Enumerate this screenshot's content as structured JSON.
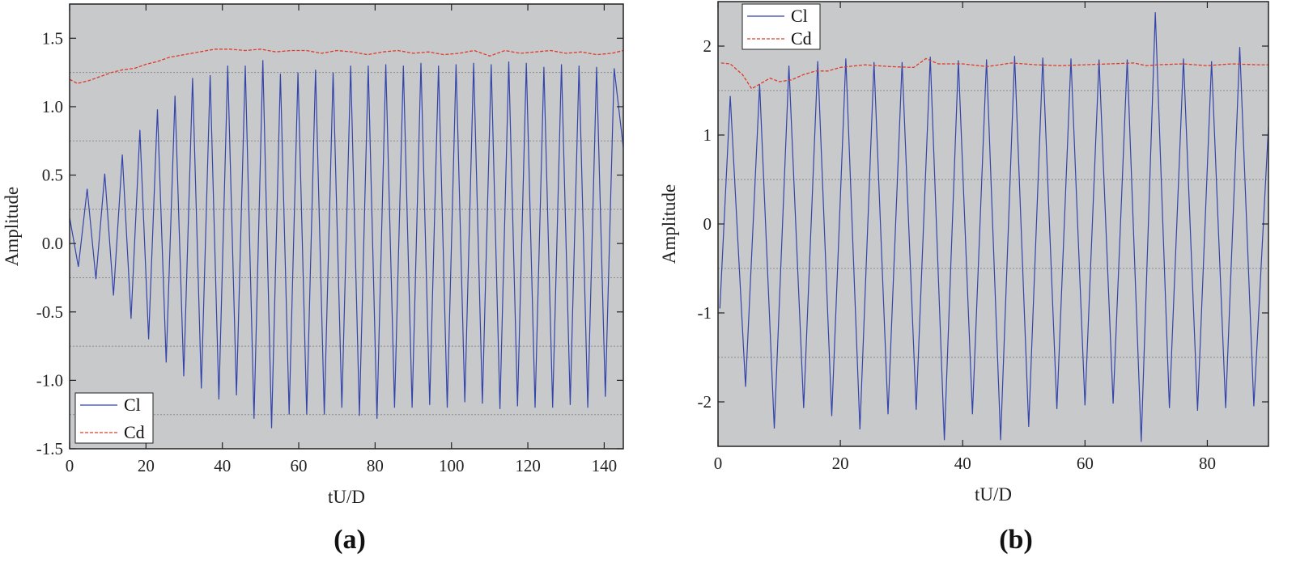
{
  "chart_data": [
    {
      "type": "line",
      "panel_label": "(a)",
      "xlabel": "tU/D",
      "ylabel": "Amplitude",
      "xlim": [
        0,
        145
      ],
      "ylim": [
        -1.5,
        1.75
      ],
      "xticks": [
        0,
        20,
        40,
        60,
        80,
        100,
        120,
        140
      ],
      "xtick_labels": [
        "0",
        "20",
        "40",
        "60",
        "80",
        "100",
        "120",
        "140"
      ],
      "yticks": [
        -1.5,
        -1.0,
        -0.5,
        0.0,
        0.5,
        1.0,
        1.5
      ],
      "ytick_labels": [
        "-1.5",
        "-1.0",
        "-0.5",
        "0.0",
        "0.5",
        "1.0",
        "1.5"
      ],
      "grid_y": [
        -1.25,
        -0.75,
        -0.25,
        0.25,
        0.75,
        1.25
      ],
      "plot_bg": "#c8c9cb",
      "legend": {
        "placement": "bottom-left",
        "entries": [
          "Cl",
          "Cd"
        ]
      },
      "series": [
        {
          "name": "Cl",
          "color": "#3344aa",
          "style": "solid",
          "x": [
            0,
            2.3,
            4.6,
            6.9,
            9.2,
            11.5,
            13.8,
            16.1,
            18.4,
            20.7,
            23.0,
            25.3,
            27.6,
            29.9,
            32.2,
            34.5,
            36.8,
            39.1,
            41.4,
            43.7,
            46.0,
            48.3,
            50.6,
            52.9,
            55.2,
            57.5,
            59.8,
            62.1,
            64.4,
            66.7,
            69.0,
            71.3,
            73.6,
            75.9,
            78.2,
            80.5,
            82.8,
            85.1,
            87.4,
            89.7,
            92.0,
            94.3,
            96.6,
            98.9,
            101.2,
            103.5,
            105.8,
            108.1,
            110.4,
            112.7,
            115.0,
            117.3,
            119.6,
            121.9,
            124.2,
            126.5,
            128.8,
            131.1,
            133.4,
            135.7,
            138.0,
            140.3,
            142.6,
            145.0
          ],
          "values": [
            0.19,
            -0.17,
            0.4,
            -0.26,
            0.51,
            -0.38,
            0.65,
            -0.55,
            0.83,
            -0.7,
            0.98,
            -0.87,
            1.08,
            -0.97,
            1.21,
            -1.06,
            1.23,
            -1.14,
            1.3,
            -1.11,
            1.3,
            -1.28,
            1.34,
            -1.35,
            1.24,
            -1.25,
            1.25,
            -1.25,
            1.27,
            -1.25,
            1.25,
            -1.2,
            1.3,
            -1.26,
            1.3,
            -1.28,
            1.31,
            -1.2,
            1.3,
            -1.2,
            1.32,
            -1.18,
            1.3,
            -1.2,
            1.31,
            -1.16,
            1.32,
            -1.17,
            1.31,
            -1.21,
            1.33,
            -1.19,
            1.32,
            -1.2,
            1.29,
            -1.2,
            1.31,
            -1.18,
            1.3,
            -1.2,
            1.29,
            -1.12,
            1.28,
            0.7
          ]
        },
        {
          "name": "Cd",
          "color": "#e03a2a",
          "style": "dashed",
          "x": [
            0,
            2,
            5,
            8,
            11,
            14,
            17,
            20,
            23,
            26,
            30,
            34,
            38,
            42,
            46,
            50,
            54,
            58,
            62,
            66,
            70,
            74,
            78,
            82,
            86,
            90,
            94,
            98,
            102,
            106,
            110,
            114,
            118,
            122,
            126,
            130,
            134,
            138,
            142,
            145
          ],
          "values": [
            1.2,
            1.17,
            1.19,
            1.22,
            1.25,
            1.27,
            1.28,
            1.31,
            1.33,
            1.36,
            1.38,
            1.4,
            1.42,
            1.42,
            1.41,
            1.42,
            1.4,
            1.41,
            1.41,
            1.39,
            1.41,
            1.4,
            1.38,
            1.4,
            1.41,
            1.39,
            1.4,
            1.38,
            1.39,
            1.41,
            1.37,
            1.41,
            1.39,
            1.4,
            1.41,
            1.39,
            1.4,
            1.38,
            1.39,
            1.41
          ]
        }
      ]
    },
    {
      "type": "line",
      "panel_label": "(b)",
      "xlabel": "tU/D",
      "ylabel": "Amplitude",
      "xlim": [
        0,
        90
      ],
      "ylim": [
        -2.5,
        2.5
      ],
      "xticks": [
        0,
        20,
        40,
        60,
        80
      ],
      "xtick_labels": [
        "0",
        "20",
        "40",
        "60",
        "80"
      ],
      "yticks": [
        -2,
        -1,
        0,
        1,
        2
      ],
      "ytick_labels": [
        "-2",
        "-1",
        "0",
        "1",
        "2"
      ],
      "grid_y": [
        -1.5,
        -0.5,
        0.5,
        1.5
      ],
      "plot_bg": "#c8c9cb",
      "legend": {
        "placement": "top-left",
        "entries": [
          "Cl",
          "Cd"
        ]
      },
      "series": [
        {
          "name": "Cl",
          "color": "#3344aa",
          "style": "solid",
          "x": [
            0.3,
            2.0,
            4.5,
            6.8,
            9.2,
            11.6,
            14.0,
            16.3,
            18.6,
            20.9,
            23.2,
            25.5,
            27.8,
            30.1,
            32.4,
            34.7,
            37.0,
            39.3,
            41.6,
            43.9,
            46.2,
            48.5,
            50.8,
            53.1,
            55.4,
            57.7,
            60.0,
            62.3,
            64.6,
            66.9,
            69.2,
            71.5,
            73.8,
            76.1,
            78.4,
            80.7,
            83.0,
            85.3,
            87.6,
            90.0
          ],
          "values": [
            -0.95,
            1.44,
            -1.83,
            1.57,
            -2.3,
            1.78,
            -2.07,
            1.83,
            -2.16,
            1.86,
            -2.31,
            1.82,
            -2.14,
            1.82,
            -2.09,
            1.88,
            -2.43,
            1.84,
            -2.14,
            1.85,
            -2.43,
            1.89,
            -2.28,
            1.87,
            -2.08,
            1.86,
            -2.04,
            1.85,
            -2.02,
            1.85,
            -2.45,
            2.38,
            -2.07,
            1.86,
            -2.1,
            1.83,
            -2.07,
            1.99,
            -2.05,
            1.1
          ]
        },
        {
          "name": "Cd",
          "color": "#e03a2a",
          "style": "dashed",
          "x": [
            0.5,
            2,
            4,
            5.5,
            7,
            8.5,
            10,
            12,
            14,
            16,
            18,
            20,
            24,
            28,
            32,
            34,
            36,
            40,
            44,
            48,
            52,
            56,
            60,
            64,
            68,
            70,
            72,
            76,
            80,
            84,
            88,
            90
          ],
          "values": [
            1.81,
            1.8,
            1.68,
            1.52,
            1.58,
            1.64,
            1.6,
            1.62,
            1.68,
            1.72,
            1.72,
            1.76,
            1.79,
            1.77,
            1.76,
            1.86,
            1.8,
            1.8,
            1.77,
            1.81,
            1.79,
            1.78,
            1.79,
            1.8,
            1.81,
            1.78,
            1.79,
            1.8,
            1.78,
            1.8,
            1.79,
            1.79
          ]
        }
      ]
    }
  ]
}
